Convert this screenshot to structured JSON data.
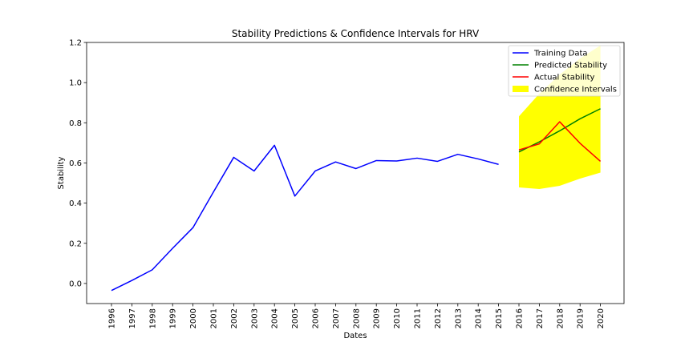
{
  "chart_data": {
    "type": "line",
    "title": "Stability Predictions & Confidence Intervals for HRV",
    "xlabel": "Dates",
    "ylabel": "Stability",
    "categories": [
      "1996",
      "1997",
      "1998",
      "1999",
      "2000",
      "2001",
      "2002",
      "2003",
      "2004",
      "2005",
      "2006",
      "2007",
      "2008",
      "2009",
      "2010",
      "2011",
      "2012",
      "2013",
      "2014",
      "2015",
      "2016",
      "2017",
      "2018",
      "2019",
      "2020"
    ],
    "ylim": [
      -0.1,
      1.2
    ],
    "yticks": [
      "0.0",
      "0.2",
      "0.4",
      "0.6",
      "0.8",
      "1.0",
      "1.2"
    ],
    "grid": false,
    "legend_position": "top-right",
    "series": [
      {
        "name": "Training Data",
        "color": "#0000ff",
        "x": [
          "1996",
          "1997",
          "1998",
          "1999",
          "2000",
          "2001",
          "2002",
          "2003",
          "2004",
          "2005",
          "2006",
          "2007",
          "2008",
          "2009",
          "2010",
          "2011",
          "2012",
          "2013",
          "2014",
          "2015"
        ],
        "values": [
          -0.035,
          0.015,
          0.068,
          0.175,
          0.278,
          0.455,
          0.628,
          0.56,
          0.688,
          0.435,
          0.56,
          0.605,
          0.572,
          0.612,
          0.61,
          0.624,
          0.608,
          0.643,
          0.62,
          0.593
        ]
      },
      {
        "name": "Predicted Stability",
        "color": "#008000",
        "x": [
          "2016",
          "2017",
          "2018",
          "2019",
          "2020"
        ],
        "values": [
          0.655,
          0.705,
          0.76,
          0.82,
          0.87
        ]
      },
      {
        "name": "Actual Stability",
        "color": "#ff0000",
        "x": [
          "2016",
          "2017",
          "2018",
          "2019",
          "2020"
        ],
        "values": [
          0.665,
          0.695,
          0.805,
          0.698,
          0.608
        ]
      }
    ],
    "confidence_interval": {
      "name": "Confidence Intervals",
      "color": "#ffff00",
      "x": [
        "2016",
        "2017",
        "2018",
        "2019",
        "2020"
      ],
      "lower": [
        0.478,
        0.47,
        0.486,
        0.522,
        0.552
      ],
      "upper": [
        0.832,
        0.945,
        1.04,
        1.12,
        1.185
      ]
    }
  }
}
